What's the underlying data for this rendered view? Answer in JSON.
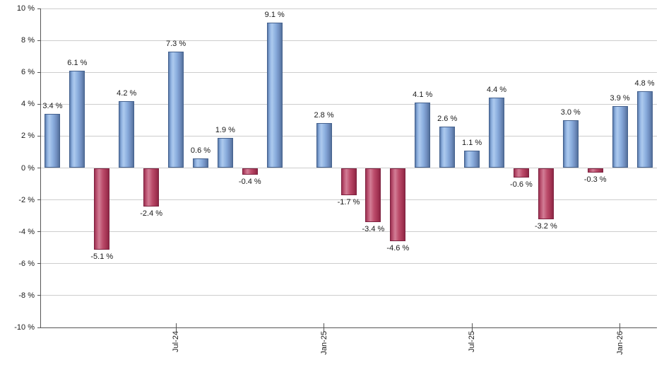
{
  "chart_data": {
    "type": "bar",
    "title": "",
    "xlabel": "",
    "ylabel": "",
    "ylim": [
      -10,
      10
    ],
    "ytick_step": 2,
    "grid": true,
    "legend": "none",
    "ytick_labels": [
      "10 %",
      "8 %",
      "6 %",
      "4 %",
      "2 %",
      "0 %",
      "-2 %",
      "-4 %",
      "-6 %",
      "-8 %",
      "-10 %"
    ],
    "bars": [
      {
        "value": 3.4,
        "label": "3.4 %"
      },
      {
        "value": 6.1,
        "label": "6.1 %"
      },
      {
        "value": -5.1,
        "label": "-5.1 %"
      },
      {
        "value": 4.2,
        "label": "4.2 %"
      },
      {
        "value": -2.4,
        "label": "-2.4 %"
      },
      {
        "value": 7.3,
        "label": "7.3 %"
      },
      {
        "value": 0.6,
        "label": "0.6 %"
      },
      {
        "value": 1.9,
        "label": "1.9 %"
      },
      {
        "value": -0.4,
        "label": "-0.4 %"
      },
      {
        "value": 9.1,
        "label": "9.1 %"
      },
      {
        "value": null,
        "label": ""
      },
      {
        "value": 2.8,
        "label": "2.8 %"
      },
      {
        "value": -1.7,
        "label": "-1.7 %"
      },
      {
        "value": -3.4,
        "label": "-3.4 %"
      },
      {
        "value": -4.6,
        "label": "-4.6 %"
      },
      {
        "value": 4.1,
        "label": "4.1 %"
      },
      {
        "value": 2.6,
        "label": "2.6 %"
      },
      {
        "value": 1.1,
        "label": "1.1 %"
      },
      {
        "value": 4.4,
        "label": "4.4 %"
      },
      {
        "value": -0.6,
        "label": "-0.6 %"
      },
      {
        "value": -3.2,
        "label": "-3.2 %"
      },
      {
        "value": 3.0,
        "label": "3.0 %"
      },
      {
        "value": -0.3,
        "label": "-0.3 %"
      },
      {
        "value": 3.9,
        "label": "3.9 %"
      },
      {
        "value": 4.8,
        "label": "4.8 %"
      }
    ],
    "xticks": [
      {
        "bar_index": 5,
        "label": "Jul-24"
      },
      {
        "bar_index": 11,
        "label": "Jan-25"
      },
      {
        "bar_index": 17,
        "label": "Jul-25"
      },
      {
        "bar_index": 23,
        "label": "Jan-26"
      }
    ],
    "positive_color": "#87ABDC",
    "negative_color": "#BB4064",
    "grid_color": "#CDCDCD",
    "axis_color": "#555555",
    "label_color": "#1A1A1A"
  }
}
